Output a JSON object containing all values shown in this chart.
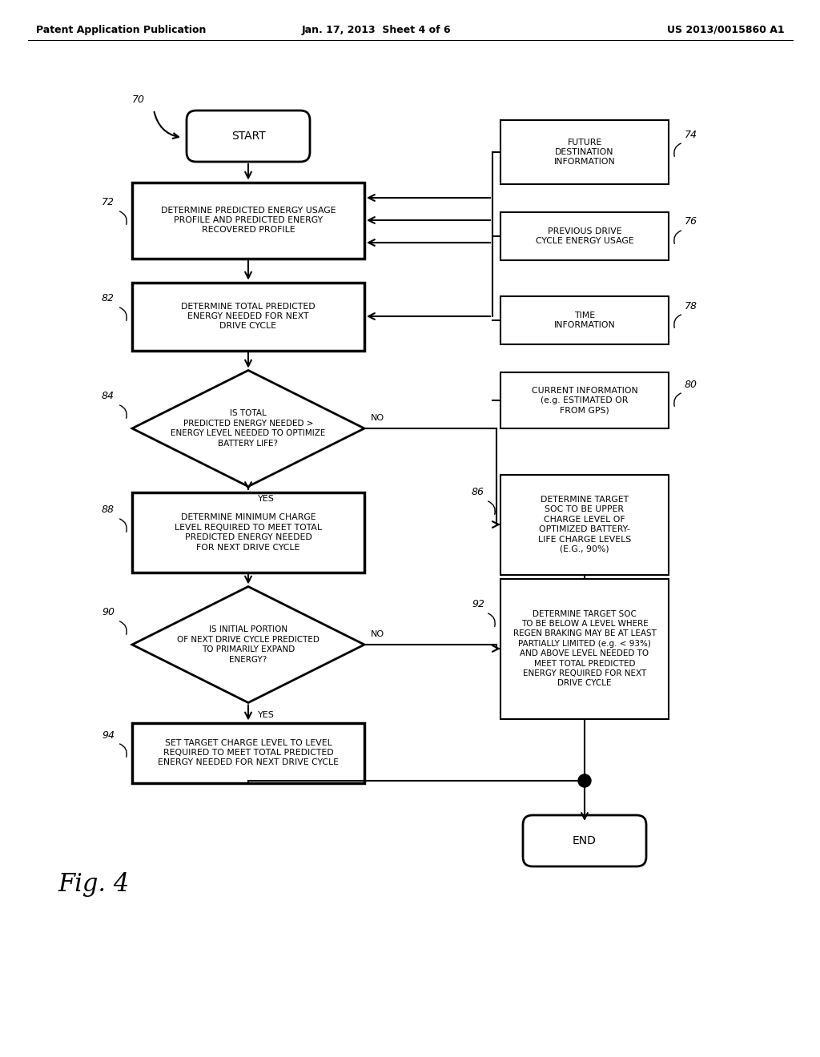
{
  "bg_color": "#ffffff",
  "header_left": "Patent Application Publication",
  "header_mid": "Jan. 17, 2013  Sheet 4 of 6",
  "header_right": "US 2013/0015860 A1",
  "fig_label": "Fig. 4",
  "box_start": "START",
  "box_72": "DETERMINE PREDICTED ENERGY USAGE\nPROFILE AND PREDICTED ENERGY\nRECOVERED PROFILE",
  "box_82": "DETERMINE TOTAL PREDICTED\nENERGY NEEDED FOR NEXT\nDRIVE CYCLE",
  "diamond_84": "IS TOTAL\nPREDICTED ENERGY NEEDED >\nENERGY LEVEL NEEDED TO OPTIMIZE\nBATTERY LIFE?",
  "box_88": "DETERMINE MINIMUM CHARGE\nLEVEL REQUIRED TO MEET TOTAL\nPREDICTED ENERGY NEEDED\nFOR NEXT DRIVE CYCLE",
  "diamond_90": "IS INITIAL PORTION\nOF NEXT DRIVE CYCLE PREDICTED\nTO PRIMARILY EXPAND\nENERGY?",
  "box_94": "SET TARGET CHARGE LEVEL TO LEVEL\nREQUIRED TO MEET TOTAL PREDICTED\nENERGY NEEDED FOR NEXT DRIVE CYCLE",
  "box_74": "FUTURE\nDESTINATION\nINFORMATION",
  "box_76": "PREVIOUS DRIVE\nCYCLE ENERGY USAGE",
  "box_78": "TIME\nINFORMATION",
  "box_80": "CURRENT INFORMATION\n(e.g. ESTIMATED OR\nFROM GPS)",
  "box_86": "DETERMINE TARGET\nSOC TO BE UPPER\nCHARGE LEVEL OF\nOPTIMIZED BATTERY-\nLIFE CHARGE LEVELS\n(E.G., 90%)",
  "box_92": "DETERMINE TARGET SOC\nTO BE BELOW A LEVEL WHERE\nREGEN BRAKING MAY BE AT LEAST\nPARTIALLY LIMITED (e.g. < 93%)\nAND ABOVE LEVEL NEEDED TO\nMEET TOTAL PREDICTED\nENERGY REQUIRED FOR NEXT\nDRIVE CYCLE",
  "box_end": "END",
  "yes_label": "YES",
  "no_label": "NO",
  "lbl_70": "70",
  "lbl_72": "72",
  "lbl_74": "74",
  "lbl_76": "76",
  "lbl_78": "78",
  "lbl_80": "80",
  "lbl_82": "82",
  "lbl_84": "84",
  "lbl_86": "86",
  "lbl_88": "88",
  "lbl_90": "90",
  "lbl_92": "92",
  "lbl_94": "94"
}
